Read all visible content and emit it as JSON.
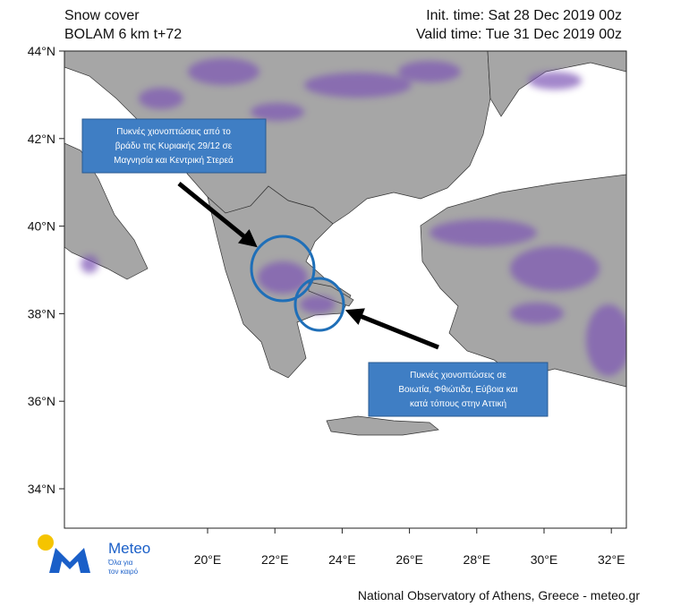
{
  "header": {
    "title": "Snow cover",
    "model": "BOLAM 6 km t+72",
    "init_time": "Init. time: Sat 28 Dec 2019 00z",
    "valid_time": "Valid time: Tue 31 Dec 2019 00z"
  },
  "map": {
    "lat_labels": [
      "44°N",
      "42°N",
      "40°N",
      "38°N",
      "36°N",
      "34°N"
    ],
    "lon_labels": [
      "20°E",
      "22°E",
      "24°E",
      "26°E",
      "28°E",
      "30°E",
      "32°E"
    ]
  },
  "annotations": [
    {
      "lines": [
        "Πυκνές χιονοπτώσεις από το",
        "βράδυ της Κυριακής 29/12 σε",
        "Μαγνησία και Κεντρική Στερεά"
      ]
    },
    {
      "lines": [
        "Πυκνές χιονοπτώσεις σε",
        "Βοιωτία, Φθιώτιδα, Εύβοια και",
        "κατά τόπους στην Αττική"
      ]
    }
  ],
  "logo": {
    "name": "Meteo",
    "tagline": [
      "Όλα για",
      "τον καιρό"
    ]
  },
  "footer": "National Observatory of Athens, Greece - meteo.gr"
}
